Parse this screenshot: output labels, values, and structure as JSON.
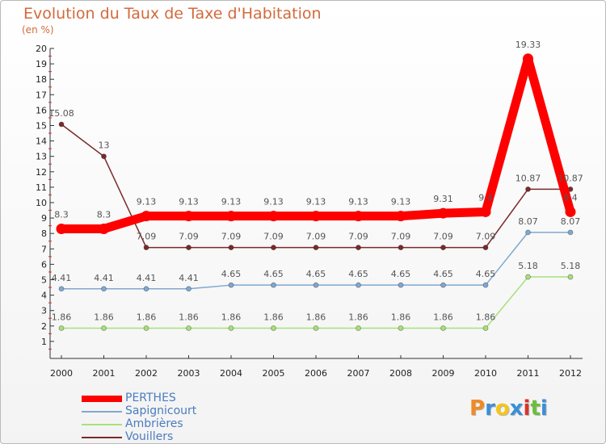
{
  "chart_data": {
    "type": "line",
    "title": "Evolution du Taux de Taxe d'Habitation",
    "subtitle": "(en %)",
    "xlabel": "",
    "ylabel": "",
    "categories": [
      "2000",
      "2001",
      "2002",
      "2003",
      "2004",
      "2005",
      "2006",
      "2007",
      "2008",
      "2009",
      "2010",
      "2011",
      "2012"
    ],
    "ylim": [
      0,
      20
    ],
    "yticks": [
      "1",
      "2",
      "3",
      "4",
      "5",
      "6",
      "7",
      "8",
      "9",
      "10",
      "11",
      "12",
      "13",
      "14",
      "15",
      "16",
      "17",
      "18",
      "19",
      "20"
    ],
    "legend_position": "bottom-left",
    "series": [
      {
        "name": "Vouillers",
        "color": "#7a2a2a",
        "values": [
          15.08,
          13,
          7.09,
          7.09,
          7.09,
          7.09,
          7.09,
          7.09,
          7.09,
          7.09,
          7.09,
          10.87,
          10.87
        ],
        "labels": [
          "15.08",
          "13",
          "7.09",
          "7.09",
          "7.09",
          "7.09",
          "7.09",
          "7.09",
          "7.09",
          "7.09",
          "7.09",
          "10.87",
          "10.87"
        ]
      },
      {
        "name": "Ambrières",
        "color": "#a6e07a",
        "values": [
          1.86,
          1.86,
          1.86,
          1.86,
          1.86,
          1.86,
          1.86,
          1.86,
          1.86,
          1.86,
          1.86,
          5.18,
          5.18
        ],
        "labels": [
          "1.86",
          "1.86",
          "1.86",
          "1.86",
          "1.86",
          "1.86",
          "1.86",
          "1.86",
          "1.86",
          "1.86",
          "1.86",
          "5.18",
          "5.18"
        ]
      },
      {
        "name": "Sapignicourt",
        "color": "#7fa8d0",
        "values": [
          4.41,
          4.41,
          4.41,
          4.41,
          4.65,
          4.65,
          4.65,
          4.65,
          4.65,
          4.65,
          4.65,
          8.07,
          8.07
        ],
        "labels": [
          "4.41",
          "4.41",
          "4.41",
          "4.41",
          "4.65",
          "4.65",
          "4.65",
          "4.65",
          "4.65",
          "4.65",
          "4.65",
          "8.07",
          "8.07"
        ]
      },
      {
        "name": "PERTHES",
        "color": "#ff0000",
        "values": [
          8.3,
          8.3,
          9.13,
          9.13,
          9.13,
          9.13,
          9.13,
          9.13,
          9.13,
          9.31,
          9.4,
          19.33,
          9.4
        ],
        "labels": [
          "8.3",
          "8.3",
          "9.13",
          "9.13",
          "9.13",
          "9.13",
          "9.13",
          "9.13",
          "9.13",
          "9.31",
          "9.4",
          "19.33",
          "9.4"
        ]
      }
    ]
  },
  "legend": {
    "items": [
      {
        "name": "PERTHES",
        "color": "#ff0000"
      },
      {
        "name": "Sapignicourt",
        "color": "#7fa8d0"
      },
      {
        "name": "Ambrières",
        "color": "#a6e07a"
      },
      {
        "name": "Vouillers",
        "color": "#7a2a2a"
      }
    ]
  },
  "logo": {
    "text": "Proxiti",
    "letters": [
      "P",
      "r",
      "o",
      "x",
      "i",
      "t",
      "i"
    ],
    "colors": [
      "#f08a24",
      "#3a8fd8",
      "#f5c518",
      "#3a8fd8",
      "#d9342b",
      "#6bbf3a",
      "#3a8fd8"
    ]
  }
}
